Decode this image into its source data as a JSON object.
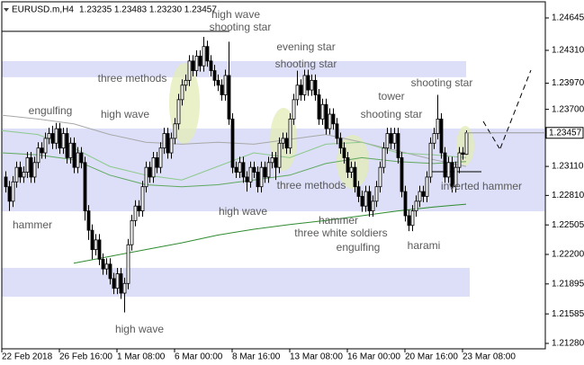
{
  "chart_data": {
    "type": "candlestick",
    "title": "EURUSD.m,H4",
    "quote": "1.23235 1.23483 1.23230 1.23457",
    "xlim": [
      0,
      151
    ],
    "xticks": [
      {
        "value": 0,
        "label": "22 Feb 2018"
      },
      {
        "value": 16,
        "label": "26 Feb 16:00"
      },
      {
        "value": 32,
        "label": "1 Mar 08:00"
      },
      {
        "value": 48,
        "label": "6 Mar 00:00"
      },
      {
        "value": 64,
        "label": "8 Mar 16:00"
      },
      {
        "value": 80,
        "label": "13 Mar 08:00"
      },
      {
        "value": 96,
        "label": "16 Mar 00:00"
      },
      {
        "value": 112,
        "label": "20 Mar 16:00"
      },
      {
        "value": 128,
        "label": "23 Mar 08:00"
      }
    ],
    "ylim": [
      1.21224,
      1.24812
    ],
    "yticks": [
      1.24645,
      {
        "value": 1.2431,
        "label": "1.24310"
      },
      {
        "value": 1.2397,
        "label": "1.23970"
      },
      {
        "value": 1.237,
        "label": "1.23700"
      },
      {
        "value": 1.2311,
        "label": "1.23110"
      },
      {
        "value": 1.2281,
        "label": "1.22810"
      },
      1.22505,
      {
        "value": 1.222,
        "label": "1.22200"
      },
      1.21895,
      1.21585,
      {
        "value": 1.2128,
        "label": "1.21280"
      }
    ],
    "grid": false,
    "bull_color": "#ffffff",
    "bear_color": "#000000",
    "open": [
      1.23,
      1.229,
      1.2275,
      1.2295,
      1.231,
      1.23,
      1.2305,
      1.232,
      1.23,
      1.2315,
      1.233,
      1.2325,
      1.234,
      1.2345,
      1.2335,
      1.235,
      1.233,
      1.2345,
      1.232,
      1.2335,
      1.231,
      1.2325,
      1.2315,
      1.2265,
      1.2245,
      1.2225,
      1.2235,
      1.2215,
      1.2205,
      1.221,
      1.2195,
      1.2185,
      1.22,
      1.218,
      1.219,
      1.223,
      1.2255,
      1.227,
      1.2265,
      1.229,
      1.231,
      1.23,
      1.232,
      1.231,
      1.233,
      1.2345,
      1.2325,
      1.234,
      1.2355,
      1.238,
      1.2395,
      1.24,
      1.242,
      1.241,
      1.2425,
      1.2415,
      1.2435,
      1.242,
      1.241,
      1.24,
      1.2395,
      1.2385,
      1.2405,
      1.236,
      1.231,
      1.2305,
      1.2315,
      1.23,
      1.2295,
      1.231,
      1.2305,
      1.229,
      1.231,
      1.23,
      1.2315,
      1.232,
      1.231,
      1.2335,
      1.234,
      1.233,
      1.236,
      1.238,
      1.2395,
      1.2385,
      1.2405,
      1.239,
      1.24,
      1.2385,
      1.236,
      1.2375,
      1.235,
      1.2365,
      1.2355,
      1.234,
      1.233,
      1.232,
      1.2305,
      1.231,
      1.229,
      1.228,
      1.227,
      1.2285,
      1.2265,
      1.2275,
      1.229,
      1.231,
      1.233,
      1.2345,
      1.2335,
      1.2345,
      1.232,
      1.2285,
      1.226,
      1.225,
      1.2265,
      1.2275,
      1.2285,
      1.228,
      1.23,
      1.2335,
      1.2345,
      1.236,
      1.2325,
      1.23,
      1.2315,
      1.229,
      1.231,
      1.2325,
      1.23235
    ],
    "high": [
      1.2306,
      1.2296,
      1.2301,
      1.2316,
      1.2316,
      1.2311,
      1.2326,
      1.2326,
      1.2321,
      1.2336,
      1.2336,
      1.2346,
      1.2351,
      1.2353,
      1.2356,
      1.2356,
      1.2351,
      1.2351,
      1.2341,
      1.2341,
      1.2331,
      1.2331,
      1.2321,
      1.2271,
      1.2251,
      1.2241,
      1.2241,
      1.2221,
      1.2216,
      1.2216,
      1.2201,
      1.2206,
      1.2206,
      1.2196,
      1.2236,
      1.2261,
      1.2276,
      1.2276,
      1.2296,
      1.2316,
      1.2316,
      1.2326,
      1.2326,
      1.2336,
      1.2351,
      1.2351,
      1.2346,
      1.2361,
      1.2386,
      1.2401,
      1.2406,
      1.2426,
      1.2426,
      1.2431,
      1.2431,
      1.2445,
      1.2441,
      1.2426,
      1.2416,
      1.2406,
      1.2401,
      1.2411,
      1.244,
      1.2366,
      1.2316,
      1.2321,
      1.2321,
      1.2306,
      1.2316,
      1.2316,
      1.2311,
      1.2316,
      1.2316,
      1.2321,
      1.2326,
      1.2326,
      1.2341,
      1.2346,
      1.2346,
      1.2366,
      1.2386,
      1.241,
      1.2401,
      1.2411,
      1.2411,
      1.2406,
      1.2406,
      1.2391,
      1.2381,
      1.2381,
      1.2371,
      1.2371,
      1.2361,
      1.2346,
      1.2336,
      1.2326,
      1.2316,
      1.2316,
      1.2296,
      1.2286,
      1.2291,
      1.2291,
      1.2281,
      1.2296,
      1.2316,
      1.2336,
      1.2351,
      1.2351,
      1.2351,
      1.2351,
      1.2326,
      1.2291,
      1.2266,
      1.2271,
      1.2281,
      1.2291,
      1.2291,
      1.2306,
      1.2341,
      1.2351,
      1.2385,
      1.2366,
      1.2331,
      1.2321,
      1.2321,
      1.2316,
      1.2331,
      1.2331,
      1.23483
    ],
    "low": [
      1.2284,
      1.2265,
      1.2269,
      1.2289,
      1.2294,
      1.2294,
      1.2299,
      1.2294,
      1.2294,
      1.2309,
      1.2319,
      1.2319,
      1.2334,
      1.2329,
      1.2329,
      1.2324,
      1.2324,
      1.2314,
      1.2314,
      1.2304,
      1.2304,
      1.2309,
      1.2255,
      1.2235,
      1.2215,
      1.2219,
      1.2209,
      1.2199,
      1.2199,
      1.2189,
      1.2179,
      1.2179,
      1.2174,
      1.216,
      1.2184,
      1.2224,
      1.2249,
      1.2259,
      1.2259,
      1.2284,
      1.2294,
      1.2294,
      1.2304,
      1.2304,
      1.2324,
      1.2319,
      1.2319,
      1.2334,
      1.2349,
      1.2374,
      1.2389,
      1.2394,
      1.2404,
      1.2404,
      1.2409,
      1.2409,
      1.2414,
      1.2404,
      1.2394,
      1.2389,
      1.2379,
      1.2379,
      1.2354,
      1.2304,
      1.2299,
      1.2299,
      1.2294,
      1.2285,
      1.2289,
      1.2299,
      1.2284,
      1.2284,
      1.2294,
      1.2294,
      1.2309,
      1.2297,
      1.2304,
      1.2329,
      1.2324,
      1.2324,
      1.2354,
      1.2374,
      1.2379,
      1.2379,
      1.2384,
      1.2384,
      1.2379,
      1.2354,
      1.2354,
      1.2344,
      1.2344,
      1.2349,
      1.2334,
      1.2324,
      1.2314,
      1.2299,
      1.2299,
      1.2284,
      1.2274,
      1.2264,
      1.2264,
      1.2259,
      1.2259,
      1.2269,
      1.2284,
      1.2304,
      1.2324,
      1.2329,
      1.2329,
      1.2314,
      1.2279,
      1.2254,
      1.2244,
      1.2244,
      1.2259,
      1.2269,
      1.2274,
      1.2274,
      1.2294,
      1.2329,
      1.2339,
      1.2319,
      1.2294,
      1.2294,
      1.2284,
      1.2284,
      1.2304,
      1.2318,
      1.2323
    ],
    "close": [
      1.229,
      1.2275,
      1.2295,
      1.231,
      1.23,
      1.2305,
      1.232,
      1.23,
      1.2315,
      1.233,
      1.2325,
      1.234,
      1.2345,
      1.2335,
      1.235,
      1.233,
      1.2345,
      1.232,
      1.2335,
      1.231,
      1.2325,
      1.2315,
      1.2265,
      1.2245,
      1.2225,
      1.2235,
      1.2215,
      1.2205,
      1.221,
      1.2195,
      1.2185,
      1.22,
      1.218,
      1.219,
      1.223,
      1.2255,
      1.227,
      1.2265,
      1.229,
      1.231,
      1.23,
      1.232,
      1.231,
      1.233,
      1.2345,
      1.2325,
      1.234,
      1.2355,
      1.238,
      1.2395,
      1.24,
      1.242,
      1.241,
      1.2425,
      1.2415,
      1.2435,
      1.242,
      1.241,
      1.24,
      1.2395,
      1.2385,
      1.2405,
      1.236,
      1.231,
      1.2305,
      1.2315,
      1.23,
      1.2295,
      1.231,
      1.2305,
      1.229,
      1.231,
      1.23,
      1.2315,
      1.232,
      1.231,
      1.2335,
      1.234,
      1.233,
      1.236,
      1.238,
      1.2395,
      1.2385,
      1.2405,
      1.239,
      1.24,
      1.2385,
      1.236,
      1.2375,
      1.235,
      1.2365,
      1.2355,
      1.234,
      1.233,
      1.232,
      1.2305,
      1.231,
      1.229,
      1.228,
      1.227,
      1.2285,
      1.2265,
      1.2275,
      1.229,
      1.231,
      1.233,
      1.2345,
      1.2335,
      1.2345,
      1.232,
      1.2285,
      1.226,
      1.225,
      1.2265,
      1.2275,
      1.2285,
      1.228,
      1.23,
      1.2335,
      1.2345,
      1.236,
      1.2325,
      1.23,
      1.2315,
      1.229,
      1.231,
      1.2325,
      1.23235,
      1.23457
    ],
    "ma_x": [
      0,
      10,
      20,
      30,
      40,
      50,
      60,
      70,
      80,
      90,
      100,
      110,
      120,
      129
    ],
    "series": [
      {
        "color": "#a8a8a8",
        "values": [
          1.2364,
          1.236,
          1.2355,
          1.2344,
          1.2336,
          1.2334,
          1.2336,
          1.2334,
          1.2339,
          1.2344,
          1.2336,
          1.2327,
          1.2318,
          1.2311
        ]
      },
      {
        "color": "#8cc98c",
        "values": [
          1.2348,
          1.2344,
          1.233,
          1.2311,
          1.2302,
          1.2297,
          1.2311,
          1.2325,
          1.232,
          1.2334,
          1.2336,
          1.2325,
          1.2323,
          1.232
        ]
      },
      {
        "color": "#5fa85f",
        "values": [
          1.2325,
          1.2323,
          1.2318,
          1.2302,
          1.2292,
          1.229,
          1.2292,
          1.2297,
          1.2302,
          1.2314,
          1.232,
          1.2316,
          1.2314,
          1.2316
        ]
      },
      {
        "color": "#2e8b2e",
        "values": [
          null,
          null,
          1.2211,
          1.2218,
          1.2225,
          1.2232,
          1.224,
          1.2246,
          1.2251,
          1.2255,
          1.226,
          1.2265,
          1.2269,
          1.2272
        ]
      }
    ],
    "zones": [
      [
        1.24199,
        1.24032
      ],
      [
        1.23502,
        1.22646
      ],
      [
        1.22061,
        1.21763
      ]
    ],
    "zone_color": "#dcdff7",
    "levels": [
      1.24506,
      1.23055
    ],
    "annotations": [
      "high wave",
      "shooting star",
      "evening star",
      "shooting star",
      "three methods",
      "high wave",
      "engulfing",
      "tower",
      "shooting star",
      "shooting star",
      "inverted hammer",
      "three methods",
      "high wave",
      "hammer",
      "hammer",
      "three white soldiers",
      "engulfing",
      "harami",
      "high wave"
    ]
  }
}
